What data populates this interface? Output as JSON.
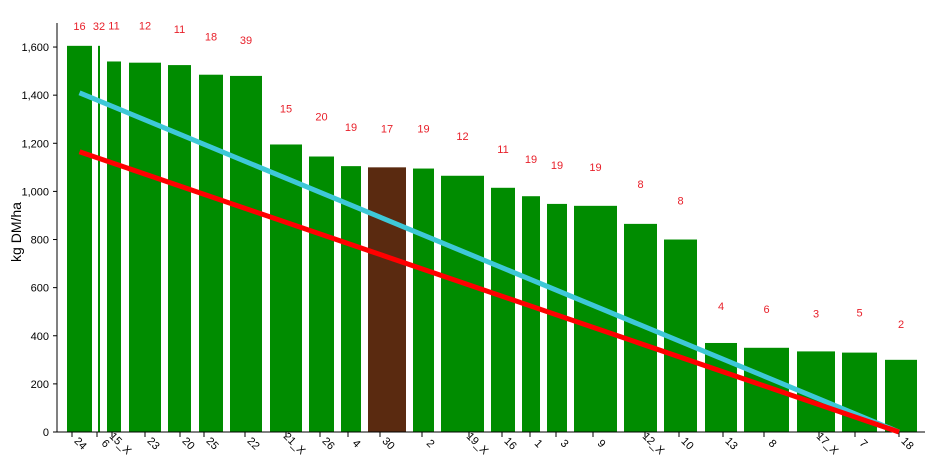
{
  "chart_data": {
    "type": "bar",
    "ylabel": "kg DM/ha",
    "ylim": [
      0,
      1700
    ],
    "y_ticks": [
      0,
      200,
      400,
      600,
      800,
      1000,
      1200,
      1400,
      1600
    ],
    "y_tick_labels": [
      "0",
      "200",
      "400",
      "600",
      "800",
      "1,000",
      "1,200",
      "1,400",
      "1,600"
    ],
    "bars": [
      {
        "category": "24",
        "value": 1605,
        "label": "16",
        "color": "#008c00"
      },
      {
        "category": "6",
        "value": 1605,
        "label": "32",
        "color": "#008c00"
      },
      {
        "category": "15_X",
        "value": 1540,
        "label": "11",
        "color": "#008c00"
      },
      {
        "category": "23",
        "value": 1535,
        "label": "12",
        "color": "#008c00"
      },
      {
        "category": "20",
        "value": 1525,
        "label": "11",
        "color": "#008c00"
      },
      {
        "category": "25",
        "value": 1485,
        "label": "18",
        "color": "#008c00"
      },
      {
        "category": "22",
        "value": 1480,
        "label": "39",
        "color": "#008c00"
      },
      {
        "category": "21_X",
        "value": 1195,
        "label": "15",
        "color": "#008c00"
      },
      {
        "category": "26",
        "value": 1145,
        "label": "20",
        "color": "#008c00"
      },
      {
        "category": "4",
        "value": 1105,
        "label": "19",
        "color": "#008c00"
      },
      {
        "category": "30",
        "value": 1100,
        "label": "17",
        "color": "#5a2a10"
      },
      {
        "category": "2",
        "value": 1095,
        "label": "19",
        "color": "#008c00"
      },
      {
        "category": "19_X",
        "value": 1065,
        "label": "12",
        "color": "#008c00"
      },
      {
        "category": "16",
        "value": 1015,
        "label": "11",
        "color": "#008c00"
      },
      {
        "category": "1",
        "value": 980,
        "label": "19",
        "color": "#008c00"
      },
      {
        "category": "3",
        "value": 948,
        "label": "19",
        "color": "#008c00"
      },
      {
        "category": "9",
        "value": 940,
        "label": "19",
        "color": "#008c00"
      },
      {
        "category": "12_X",
        "value": 865,
        "label": "8",
        "color": "#008c00"
      },
      {
        "category": "10",
        "value": 800,
        "label": "8",
        "color": "#008c00"
      },
      {
        "category": "13",
        "value": 370,
        "label": "4",
        "color": "#008c00"
      },
      {
        "category": "8",
        "value": 350,
        "label": "6",
        "color": "#008c00"
      },
      {
        "category": "17_X",
        "value": 335,
        "label": "3",
        "color": "#008c00"
      },
      {
        "category": "7",
        "value": 330,
        "label": "5",
        "color": "#008c00"
      },
      {
        "category": "18",
        "value": 300,
        "label": "2",
        "color": "#008c00"
      }
    ],
    "lines": [
      {
        "color": "#3ec8d8",
        "from_category": "24",
        "to_category": "18",
        "y_start": 1410,
        "y_end": 0
      },
      {
        "color": "#ff0000",
        "from_category": "24",
        "to_category": "18",
        "y_start": 1165,
        "y_end": 0
      }
    ],
    "grid": false,
    "legend": "none"
  }
}
